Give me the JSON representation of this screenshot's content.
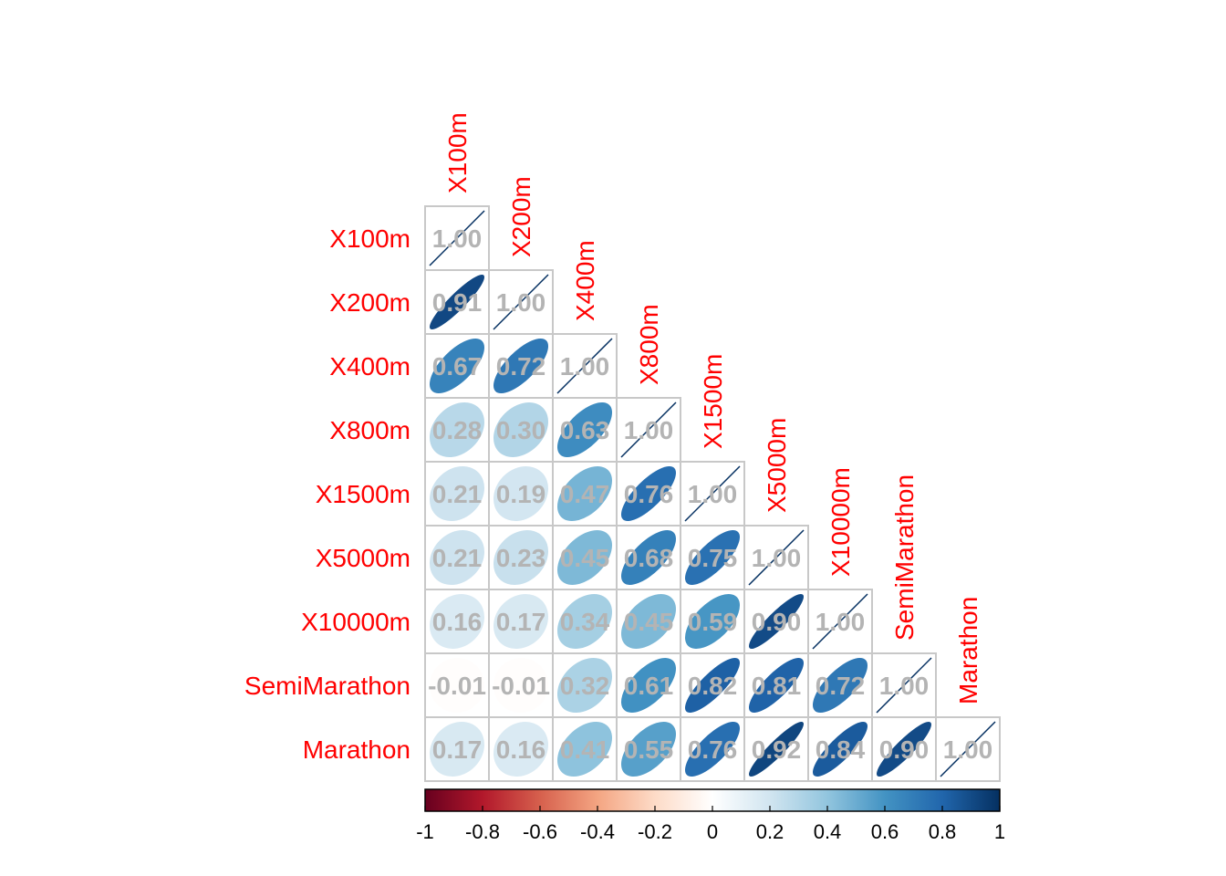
{
  "chart_data": {
    "type": "heatmap",
    "variables": [
      "X100m",
      "X200m",
      "X400m",
      "X800m",
      "X1500m",
      "X5000m",
      "X10000m",
      "SemiMarathon",
      "Marathon"
    ],
    "matrix_lower": [
      [
        1.0
      ],
      [
        0.91,
        1.0
      ],
      [
        0.67,
        0.72,
        1.0
      ],
      [
        0.28,
        0.3,
        0.63,
        1.0
      ],
      [
        0.21,
        0.19,
        0.47,
        0.76,
        1.0
      ],
      [
        0.21,
        0.23,
        0.45,
        0.68,
        0.75,
        1.0
      ],
      [
        0.16,
        0.17,
        0.34,
        0.45,
        0.59,
        0.9,
        1.0
      ],
      [
        -0.01,
        -0.01,
        0.32,
        0.61,
        0.82,
        0.81,
        0.72,
        1.0
      ],
      [
        0.17,
        0.16,
        0.41,
        0.55,
        0.76,
        0.92,
        0.84,
        0.9,
        1.0
      ]
    ],
    "label_format": "2 decimals",
    "shape": "ellipse",
    "type_layout": "lower triangle",
    "colorbar": {
      "range": [
        -1,
        1
      ],
      "ticks": [
        "-1",
        "-0.8",
        "-0.6",
        "-0.4",
        "-0.2",
        "0",
        "0.2",
        "0.4",
        "0.6",
        "0.8",
        "1"
      ],
      "palette": [
        "#67001f",
        "#b2182b",
        "#d6604d",
        "#f4a582",
        "#fddbc7",
        "#ffffff",
        "#d1e5f0",
        "#92c5de",
        "#4393c3",
        "#2166ac",
        "#053061"
      ]
    },
    "label_color": "#ff0000",
    "value_color": "#b4b4b4",
    "grid_color": "#c8c8c8"
  }
}
